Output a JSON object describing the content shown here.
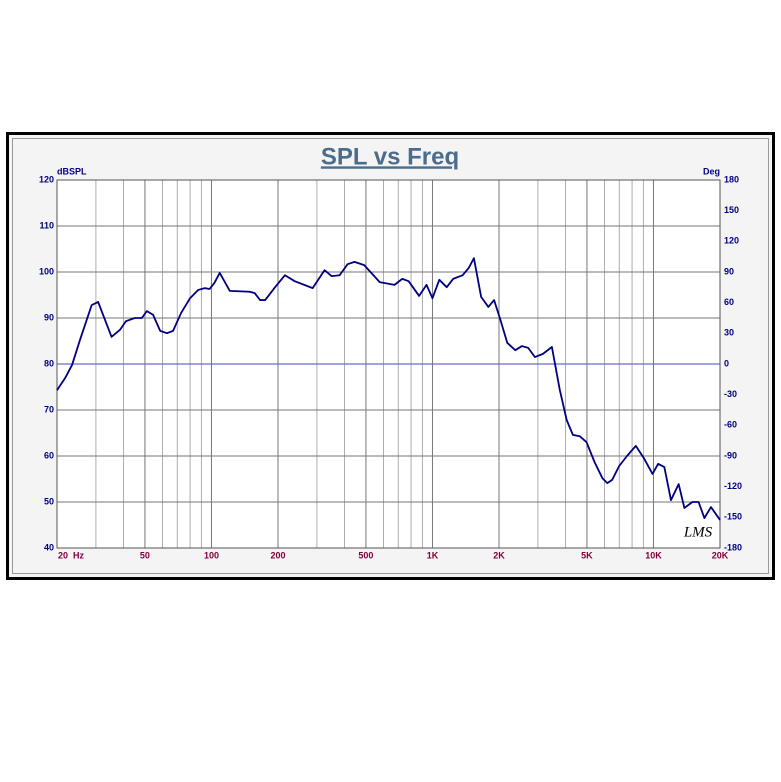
{
  "chart_data": {
    "type": "line",
    "title": "SPL vs Freq",
    "y_label": "dBSPL",
    "y2_label": "Deg",
    "annotation": "LMS",
    "log_x": true,
    "grid": true,
    "x": [
      20,
      21.8,
      23.4,
      25.4,
      28.7,
      30.7,
      35.3,
      38.5,
      41,
      45,
      48.4,
      51,
      54.4,
      58.6,
      62.9,
      67,
      72.9,
      80,
      87,
      93.3,
      98,
      103,
      109,
      121,
      149,
      157,
      166,
      175,
      194,
      215,
      238,
      287,
      325,
      350,
      380,
      413,
      444,
      491,
      577,
      673,
      730,
      780,
      870,
      940,
      1000,
      1074,
      1160,
      1240,
      1370,
      1460,
      1540,
      1660,
      1790,
      1900,
      2030,
      2180,
      2370,
      2540,
      2710,
      2910,
      3160,
      3470,
      3770,
      4050,
      4320,
      4640,
      4980,
      5410,
      5870,
      6180,
      6500,
      6990,
      7590,
      8320,
      9030,
      9900,
      10500,
      11200,
      12000,
      13000,
      13800,
      15000,
      16000,
      17000,
      18200,
      20000
    ],
    "series": [
      {
        "name": "SPL",
        "color": "#000080",
        "values": [
          74.3,
          77,
          79.8,
          85.2,
          92.8,
          93.5,
          85.9,
          87.4,
          89.3,
          90,
          90,
          91.5,
          90.7,
          87.2,
          86.7,
          87.2,
          91.1,
          94.3,
          96.1,
          96.5,
          96.3,
          97.6,
          99.8,
          95.9,
          95.7,
          95.4,
          93.9,
          93.9,
          96.7,
          99.3,
          98,
          96.5,
          100.4,
          99.1,
          99.3,
          101.7,
          102.2,
          101.5,
          97.8,
          97.2,
          98.5,
          98,
          94.8,
          97.2,
          94.3,
          98.3,
          96.7,
          98.5,
          99.3,
          100.9,
          103,
          94.6,
          92.4,
          93.9,
          89.6,
          84.6,
          83,
          83.9,
          83.5,
          81.5,
          82.2,
          83.7,
          74.3,
          67.8,
          64.6,
          64.3,
          63,
          58.7,
          55.2,
          54.1,
          54.8,
          57.8,
          60,
          62.2,
          59.6,
          56.1,
          58.3,
          57.6,
          50.4,
          53.9,
          48.7,
          50,
          50,
          46.5,
          48.9,
          46.1
        ]
      }
    ],
    "xlim": [
      20,
      20000
    ],
    "xticks": [
      {
        "value": 20,
        "label": "20  Hz"
      },
      50,
      100,
      200,
      500,
      {
        "value": 1000,
        "label": "1K"
      },
      {
        "value": 2000,
        "label": "2K"
      },
      {
        "value": 5000,
        "label": "5K"
      },
      {
        "value": 10000,
        "label": "10K"
      },
      {
        "value": 20000,
        "label": "20K"
      }
    ],
    "xgrid": [
      30,
      40,
      60,
      70,
      80,
      90,
      300,
      400,
      600,
      700,
      800,
      900,
      3000,
      4000,
      6000,
      7000,
      8000,
      9000
    ],
    "ylim": [
      40,
      120
    ],
    "yticks": [
      40,
      50,
      60,
      70,
      80,
      90,
      100,
      110,
      120
    ],
    "y2lim": [
      -180,
      180
    ],
    "y2ticks": [
      -180,
      -150,
      -120,
      -90,
      -60,
      -30,
      0,
      30,
      60,
      90,
      120,
      150,
      180
    ]
  }
}
